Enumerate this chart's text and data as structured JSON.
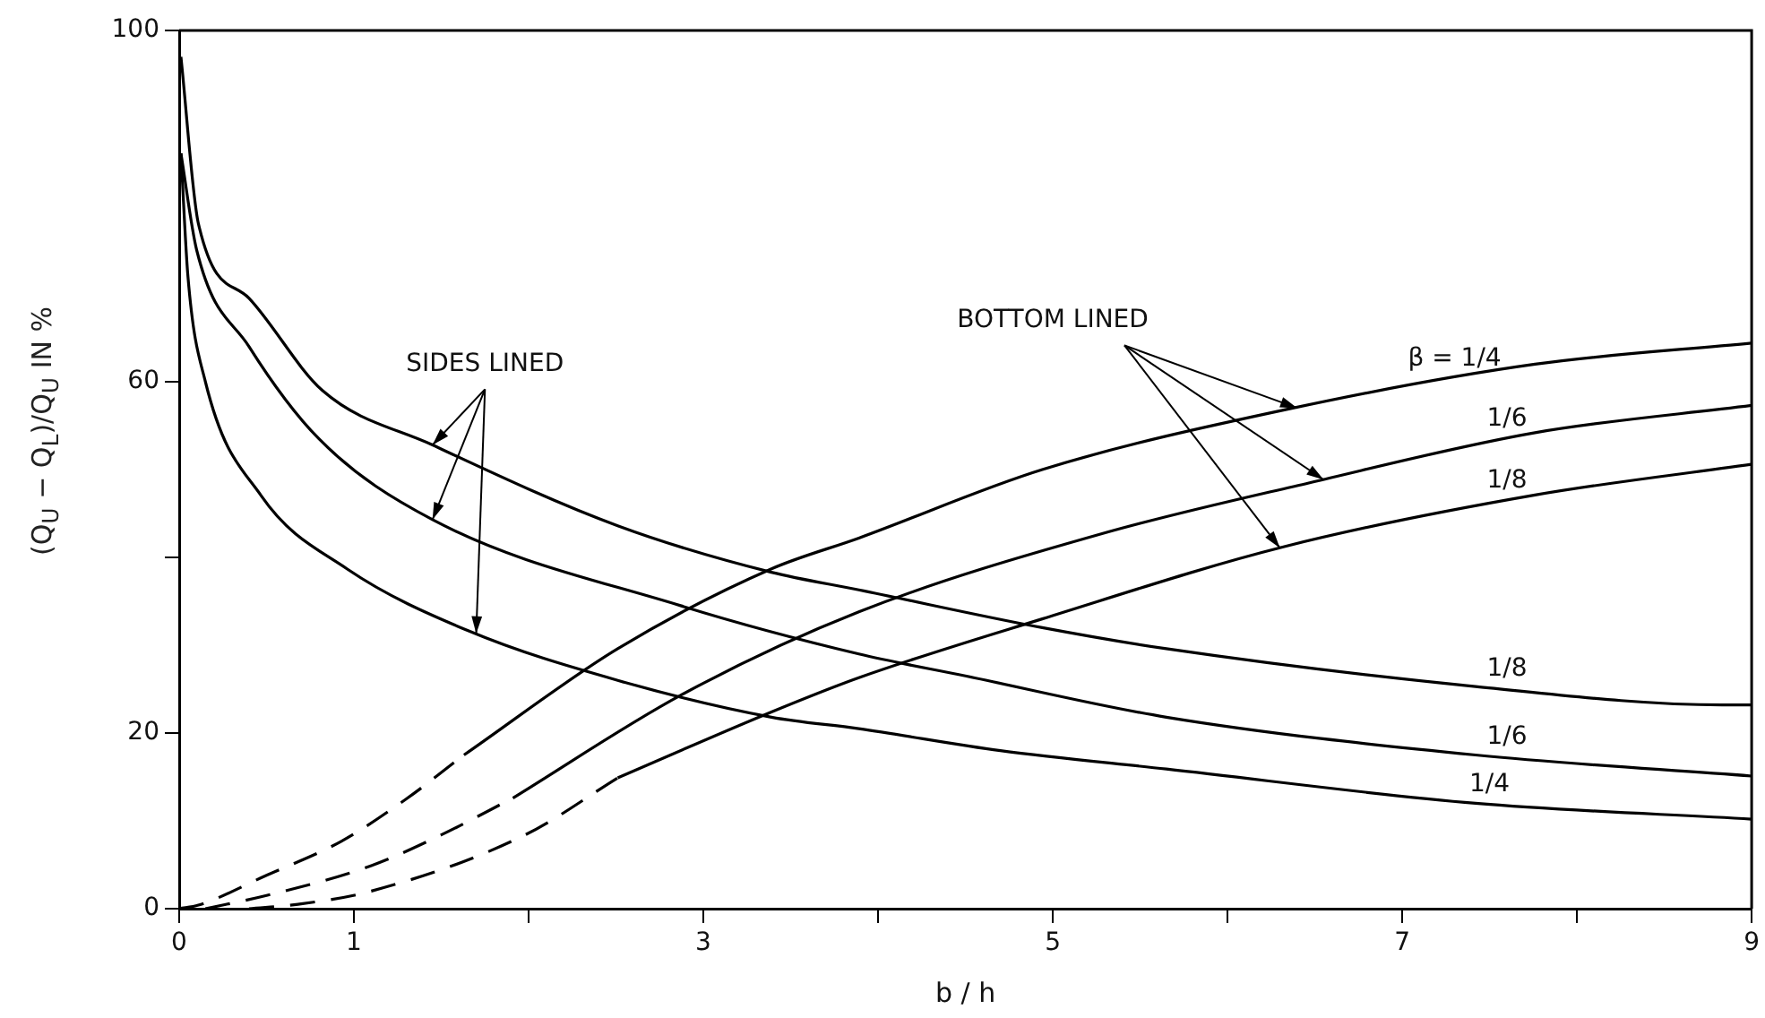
{
  "chart_data": {
    "type": "line",
    "xlabel": "b / h",
    "ylabel": "(Q$_{U}$ − Q$_{L}$)/Q$_{U}$ IN %",
    "annotations": [
      {
        "text": "SIDES LINED",
        "x": 1.45,
        "y": 52.8
      },
      {
        "text": "BOTTOM LINED",
        "x": 6.4,
        "y": 57
      }
    ],
    "xlim": [
      0,
      9
    ],
    "xticks": [
      0,
      1,
      {
        "value": 2,
        "label": null
      },
      3,
      {
        "value": 4,
        "label": null
      },
      5,
      {
        "value": 6,
        "label": null
      },
      7,
      {
        "value": 8,
        "label": null
      },
      9
    ],
    "ylim": [
      0,
      100
    ],
    "yticks": [
      0,
      20,
      {
        "value": 40,
        "label": null
      },
      60,
      100
    ],
    "grid": false,
    "legend": false,
    "marker": "none",
    "series": [
      {
        "name": "1/8",
        "color": "#000000",
        "line_style": "solid",
        "x": [
          0.01,
          0.11,
          0.4,
          0.82,
          1.45,
          2.51,
          3.39,
          3.89,
          4.94,
          5.65,
          7.42,
          8.83,
          9
        ],
        "values": [
          97,
          78,
          69.5,
          59,
          52.8,
          43.6,
          38.3,
          36.3,
          32,
          29.6,
          25.3,
          23.2,
          23.2
        ]
      },
      {
        "name": "1/6",
        "color": "#000000",
        "line_style": "solid",
        "x": [
          0.01,
          0.1,
          0.4,
          0.8,
          1.45,
          2.87,
          3.89,
          4.5,
          5.65,
          7.42,
          9
        ],
        "values": [
          86,
          75,
          64,
          53.5,
          44.3,
          34.5,
          29,
          26.5,
          21.8,
          17.5,
          15.1
        ]
      },
      {
        "name": "1/4",
        "color": "#000000",
        "line_style": "solid",
        "x": [
          0.01,
          0.05,
          0.15,
          0.47,
          0.96,
          1.66,
          2.51,
          3.39,
          3.89,
          4.7,
          5.65,
          7.42,
          9
        ],
        "values": [
          86,
          72,
          60,
          47,
          38.7,
          31.6,
          26,
          21.8,
          20.5,
          18,
          15.9,
          12,
          10.2
        ]
      },
      {
        "color": "#000000",
        "line_style": "dashed",
        "x": [
          0,
          0.11,
          0.5,
          0.93,
          1.3,
          1.63
        ],
        "values": [
          0,
          0.4,
          3.8,
          7.7,
          12.5,
          17.5
        ]
      },
      {
        "name": "β = 1/4",
        "color": "#000000",
        "line_style": "solid",
        "x": [
          1.63,
          2.51,
          3.39,
          3.89,
          4.94,
          6.35,
          7.76,
          9
        ],
        "values": [
          17.5,
          29.6,
          38.7,
          42.2,
          50,
          56.9,
          62,
          64.4
        ]
      },
      {
        "color": "#000000",
        "line_style": "dashed",
        "x": [
          0.15,
          0.5,
          1.1,
          1.5,
          1.91
        ],
        "values": [
          0,
          1.5,
          4.9,
          8.4,
          12.6
        ]
      },
      {
        "name": "1/6",
        "color": "#000000",
        "line_style": "solid",
        "x": [
          1.91,
          2.87,
          3.89,
          5.3,
          6.47,
          7.76,
          9
        ],
        "values": [
          12.6,
          24.3,
          33.8,
          42.8,
          48.5,
          54.2,
          57.3
        ]
      },
      {
        "color": "#000000",
        "line_style": "dashed",
        "x": [
          0.4,
          0.68,
          1.1,
          1.98,
          2.51
        ],
        "values": [
          0,
          0.5,
          2,
          8.4,
          14.9
        ]
      },
      {
        "name": "1/8",
        "color": "#000000",
        "line_style": "solid",
        "x": [
          2.51,
          3.39,
          3.89,
          4.94,
          6.32,
          7.76,
          9
        ],
        "values": [
          14.9,
          22.4,
          26.3,
          33,
          41.2,
          47.1,
          50.6
        ]
      }
    ]
  }
}
